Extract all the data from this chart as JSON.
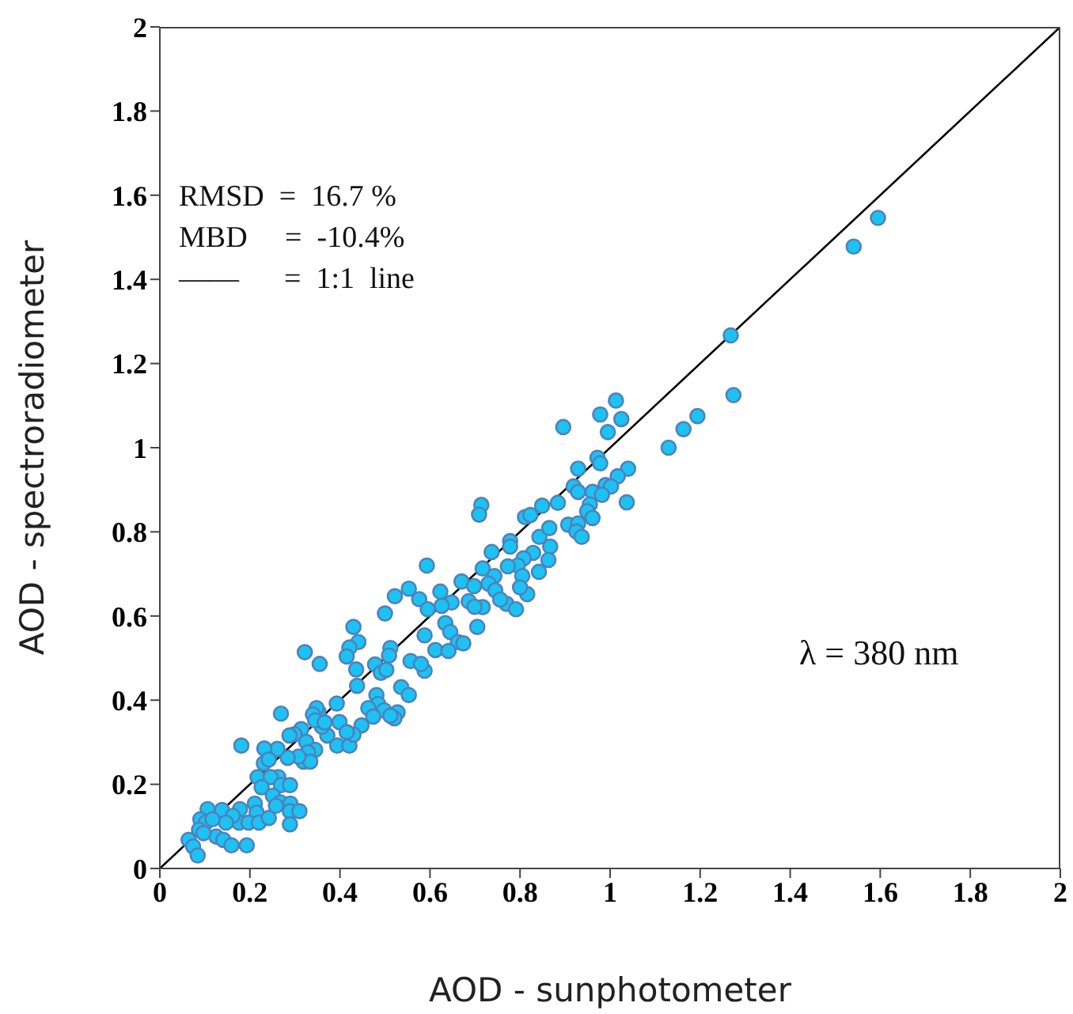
{
  "chart_data": {
    "type": "scatter",
    "xlabel": "AOD - sunphotometer",
    "ylabel": "AOD - spectroradiometer",
    "xlim": [
      0,
      2
    ],
    "ylim": [
      0,
      2
    ],
    "xticks": [
      0,
      0.2,
      0.4,
      0.6,
      0.8,
      1,
      1.2,
      1.4,
      1.6,
      1.8,
      2
    ],
    "yticks": [
      0,
      0.2,
      0.4,
      0.6,
      0.8,
      1,
      1.2,
      1.4,
      1.6,
      1.8,
      2
    ],
    "annotations": [
      "RMSD  =  16.7 %",
      "MBD     =  -10.4%",
      "——      =  1:1  line",
      "λ = 380 nm"
    ],
    "series": [
      {
        "marker": "circle",
        "color": "#1cc3f2",
        "x": [
          1.595,
          1.541,
          1.268,
          1.274,
          1.194,
          1.163,
          1.13,
          0.896,
          1.013,
          0.978,
          1.025,
          0.995,
          0.972,
          0.978,
          1.04,
          1.017,
          0.929,
          0.919,
          0.99,
          1.002,
          0.961,
          0.929,
          0.982,
          1.037,
          0.884,
          0.849,
          0.955,
          0.949,
          0.961,
          0.907,
          0.929,
          0.925,
          0.937,
          0.811,
          0.823,
          0.714,
          0.709,
          0.778,
          0.778,
          0.843,
          0.865,
          0.867,
          0.863,
          0.842,
          0.829,
          0.808,
          0.795,
          0.773,
          0.737,
          0.717,
          0.743,
          0.73,
          0.745,
          0.77,
          0.756,
          0.805,
          0.816,
          0.8,
          0.791,
          0.593,
          0.67,
          0.698,
          0.686,
          0.717,
          0.699,
          0.705,
          0.623,
          0.648,
          0.626,
          0.576,
          0.553,
          0.522,
          0.5,
          0.595,
          0.634,
          0.645,
          0.662,
          0.674,
          0.612,
          0.641,
          0.588,
          0.43,
          0.441,
          0.421,
          0.415,
          0.512,
          0.509,
          0.322,
          0.355,
          0.557,
          0.588,
          0.58,
          0.478,
          0.491,
          0.503,
          0.436,
          0.438,
          0.536,
          0.553,
          0.481,
          0.485,
          0.463,
          0.498,
          0.528,
          0.521,
          0.512,
          0.474,
          0.448,
          0.393,
          0.399,
          0.394,
          0.421,
          0.43,
          0.415,
          0.372,
          0.36,
          0.352,
          0.348,
          0.34,
          0.345,
          0.366,
          0.269,
          0.314,
          0.299,
          0.288,
          0.325,
          0.345,
          0.329,
          0.319,
          0.334,
          0.308,
          0.284,
          0.261,
          0.232,
          0.181,
          0.231,
          0.242,
          0.217,
          0.263,
          0.246,
          0.269,
          0.289,
          0.226,
          0.251,
          0.268,
          0.258,
          0.29,
          0.289,
          0.31,
          0.211,
          0.215,
          0.178,
          0.176,
          0.197,
          0.22,
          0.242,
          0.289,
          0.138,
          0.162,
          0.147,
          0.106,
          0.09,
          0.102,
          0.117,
          0.125,
          0.141,
          0.159,
          0.193,
          0.064,
          0.074,
          0.084,
          0.087,
          0.097
        ],
        "values": [
          1.546,
          1.478,
          1.267,
          1.125,
          1.075,
          1.044,
          1.0,
          1.049,
          1.112,
          1.079,
          1.068,
          1.037,
          0.976,
          0.963,
          0.95,
          0.932,
          0.95,
          0.908,
          0.911,
          0.908,
          0.895,
          0.895,
          0.888,
          0.87,
          0.869,
          0.862,
          0.865,
          0.849,
          0.833,
          0.817,
          0.82,
          0.801,
          0.788,
          0.835,
          0.84,
          0.864,
          0.841,
          0.778,
          0.765,
          0.788,
          0.809,
          0.765,
          0.733,
          0.705,
          0.75,
          0.737,
          0.72,
          0.718,
          0.752,
          0.713,
          0.695,
          0.677,
          0.661,
          0.629,
          0.639,
          0.695,
          0.652,
          0.668,
          0.616,
          0.72,
          0.682,
          0.671,
          0.635,
          0.621,
          0.622,
          0.574,
          0.658,
          0.632,
          0.624,
          0.64,
          0.665,
          0.647,
          0.606,
          0.616,
          0.583,
          0.562,
          0.538,
          0.535,
          0.519,
          0.517,
          0.554,
          0.574,
          0.538,
          0.525,
          0.504,
          0.524,
          0.506,
          0.514,
          0.486,
          0.493,
          0.47,
          0.486,
          0.485,
          0.465,
          0.472,
          0.473,
          0.434,
          0.431,
          0.412,
          0.412,
          0.391,
          0.381,
          0.376,
          0.371,
          0.357,
          0.363,
          0.361,
          0.34,
          0.392,
          0.348,
          0.292,
          0.292,
          0.318,
          0.324,
          0.316,
          0.337,
          0.373,
          0.381,
          0.366,
          0.352,
          0.347,
          0.368,
          0.331,
          0.319,
          0.316,
          0.301,
          0.282,
          0.276,
          0.254,
          0.254,
          0.266,
          0.263,
          0.284,
          0.285,
          0.292,
          0.25,
          0.259,
          0.217,
          0.217,
          0.217,
          0.198,
          0.198,
          0.193,
          0.173,
          0.157,
          0.149,
          0.154,
          0.136,
          0.136,
          0.154,
          0.133,
          0.141,
          0.109,
          0.109,
          0.109,
          0.12,
          0.105,
          0.139,
          0.125,
          0.109,
          0.141,
          0.117,
          0.109,
          0.117,
          0.076,
          0.068,
          0.055,
          0.055,
          0.068,
          0.052,
          0.031,
          0.092,
          0.084
        ]
      },
      {
        "type": "line",
        "color": "#000000",
        "x": [
          0,
          2
        ],
        "values": [
          0,
          2
        ]
      }
    ]
  }
}
